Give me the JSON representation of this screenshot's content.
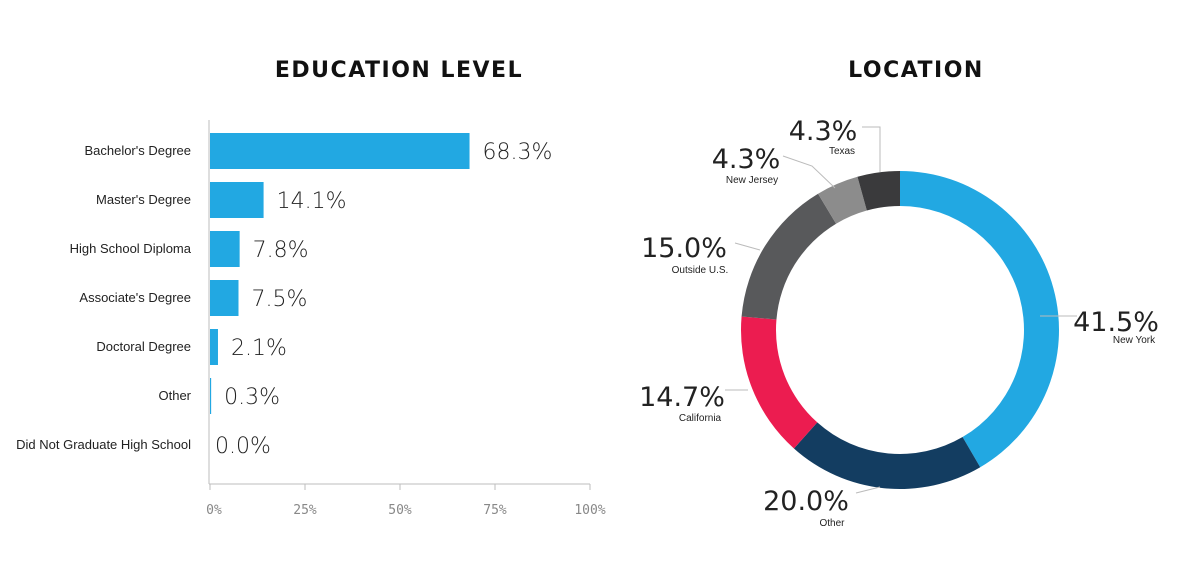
{
  "chart_data": [
    {
      "type": "bar",
      "orientation": "horizontal",
      "title": "EDUCATION LEVEL",
      "categories": [
        "Bachelor's Degree",
        "Master's Degree",
        "High School Diploma",
        "Associate's Degree",
        "Doctoral Degree",
        "Other",
        "Did Not Graduate High School"
      ],
      "values": [
        68.3,
        14.1,
        7.8,
        7.5,
        2.1,
        0.3,
        0.0
      ],
      "value_labels": [
        "68.3%",
        "14.1%",
        "7.8%",
        "7.5%",
        "2.1%",
        "0.3%",
        "0.0%"
      ],
      "xlim": [
        0,
        100
      ],
      "ticks": [
        0,
        25,
        50,
        75,
        100
      ],
      "tick_labels": [
        "0%",
        "25%",
        "50%",
        "75%",
        "100%"
      ],
      "bar_color": "#22a8e2",
      "grid": false
    },
    {
      "type": "pie",
      "style": "donut",
      "title": "LOCATION",
      "slices": [
        {
          "name": "New York",
          "value": 41.5,
          "label": "41.5%",
          "color": "#22a8e2"
        },
        {
          "name": "Other",
          "value": 20.0,
          "label": "20.0%",
          "color": "#133d61"
        },
        {
          "name": "California",
          "value": 14.7,
          "label": "14.7%",
          "color": "#ec1c50"
        },
        {
          "name": "Outside U.S.",
          "value": 15.0,
          "label": "15.0%",
          "color": "#58595b"
        },
        {
          "name": "New Jersey",
          "value": 4.3,
          "label": "4.3%",
          "color": "#8c8c8c"
        },
        {
          "name": "Texas",
          "value": 4.3,
          "label": "4.3%",
          "color": "#3a3a3c"
        }
      ]
    }
  ]
}
